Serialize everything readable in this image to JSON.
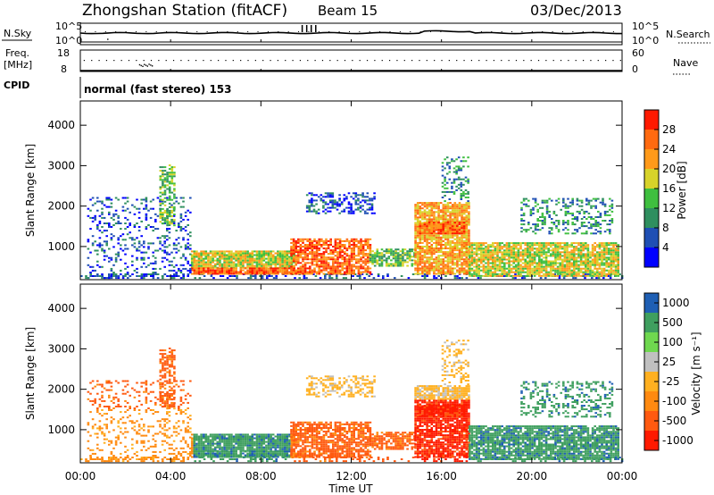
{
  "header": {
    "station": "Zhongshan Station (fitACF)",
    "beam": "Beam 15",
    "date": "03/Dec/2013"
  },
  "nsky_panel": {
    "label": "N.Sky",
    "left_ticks": [
      "10^5",
      "10^0"
    ],
    "right_label": "N.Search",
    "right_ticks": [
      "10^5",
      "10^0"
    ]
  },
  "freq_panel": {
    "label": "Freq.",
    "unit": "[MHz]",
    "left_ticks": [
      "18",
      "8"
    ],
    "right_label": "Nave",
    "right_ticks": [
      "60",
      "0"
    ]
  },
  "cpid": {
    "label": "CPID",
    "text": "normal (fast stereo) 153"
  },
  "colors": {
    "power_scale": [
      "#0000ff",
      "#1f4fb4",
      "#2f8f5f",
      "#3fbf3f",
      "#d7d32a",
      "#ff9a1a",
      "#ff6a10",
      "#ff1a00"
    ],
    "velocity_scale": [
      "#ff1a00",
      "#ff5a10",
      "#ff8a10",
      "#ffb020",
      "#c0c0c0",
      "#6fd84f",
      "#3f9f5f",
      "#1f5fb4"
    ]
  },
  "chart_data": [
    {
      "type": "heatmap",
      "panel": "power",
      "title": "",
      "xlabel": "Time UT",
      "ylabel": "Slant Range [km]",
      "x_ticks": [
        "00:00",
        "04:00",
        "08:00",
        "12:00",
        "16:00",
        "20:00",
        "00:00"
      ],
      "y_ticks": [
        "1000",
        "2000",
        "3000",
        "4000"
      ],
      "xlim": [
        0,
        24
      ],
      "ylim": [
        180,
        4600
      ],
      "colorbar": {
        "label": "Power [dB]",
        "ticks": [
          "4",
          "8",
          "12",
          "16",
          "20",
          "24",
          "28"
        ]
      }
    },
    {
      "type": "heatmap",
      "panel": "velocity",
      "title": "",
      "xlabel": "Time UT",
      "ylabel": "Slant Range [km]",
      "x_ticks": [
        "00:00",
        "04:00",
        "08:00",
        "12:00",
        "16:00",
        "20:00",
        "00:00"
      ],
      "y_ticks": [
        "1000",
        "2000",
        "3000",
        "4000"
      ],
      "xlim": [
        0,
        24
      ],
      "ylim": [
        180,
        4600
      ],
      "colorbar": {
        "label": "Velocity [m s⁻¹]",
        "ticks": [
          "1000",
          "500",
          "100",
          "25",
          "-25",
          "-100",
          "-500",
          "-1000"
        ]
      }
    }
  ]
}
